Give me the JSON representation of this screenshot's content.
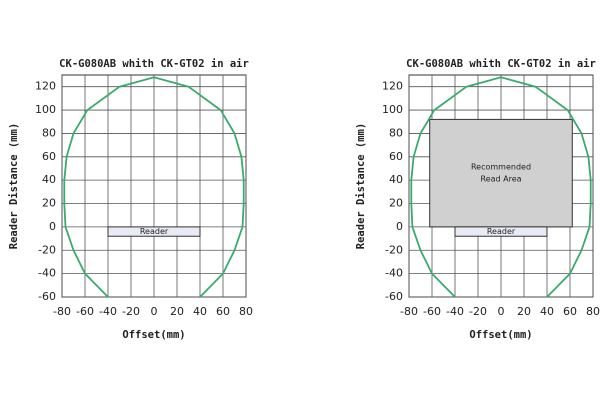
{
  "chart_data": [
    {
      "type": "line",
      "title": "CK-G080AB whith CK-GT02 in air",
      "xlabel": "Offset(mm)",
      "ylabel": "Reader Distance (mm)",
      "xlim": [
        -80,
        80
      ],
      "ylim": [
        -60,
        130
      ],
      "xticks": [
        -80,
        -60,
        -40,
        -20,
        0,
        20,
        40,
        60,
        80
      ],
      "yticks": [
        -60,
        -40,
        -20,
        0,
        20,
        40,
        60,
        80,
        100,
        120
      ],
      "grid": true,
      "series": [
        {
          "color": "#3aaa6e",
          "x": [
            -40,
            -60,
            -70,
            -77,
            -78,
            -78,
            -76,
            -70,
            -58,
            -30,
            0,
            30,
            58,
            70,
            76,
            78,
            78,
            77,
            70,
            60,
            40
          ],
          "values": [
            -60,
            -40,
            -20,
            0,
            20,
            40,
            60,
            80,
            100,
            120,
            128,
            120,
            100,
            80,
            60,
            40,
            20,
            0,
            -20,
            -40,
            -60
          ]
        }
      ],
      "annotations": [
        {
          "label": [
            "Reader"
          ],
          "x": [
            -40,
            40
          ],
          "y": [
            -8,
            0
          ],
          "color": "#e8eaf4"
        }
      ]
    },
    {
      "type": "line",
      "title": "CK-G080AB whith CK-GT02 in air",
      "xlabel": "Offset(mm)",
      "ylabel": "Reader Distance (mm)",
      "xlim": [
        -80,
        80
      ],
      "ylim": [
        -60,
        130
      ],
      "xticks": [
        -80,
        -60,
        -40,
        -20,
        0,
        20,
        40,
        60,
        80
      ],
      "yticks": [
        -60,
        -40,
        -20,
        0,
        20,
        40,
        60,
        80,
        100,
        120
      ],
      "grid": true,
      "series": [
        {
          "color": "#3aaa6e",
          "x": [
            -40,
            -60,
            -70,
            -77,
            -78,
            -78,
            -76,
            -70,
            -58,
            -30,
            0,
            30,
            58,
            70,
            76,
            78,
            78,
            77,
            70,
            60,
            40
          ],
          "values": [
            -60,
            -40,
            -20,
            0,
            20,
            40,
            60,
            80,
            100,
            120,
            128,
            120,
            100,
            80,
            60,
            40,
            20,
            0,
            -20,
            -40,
            -60
          ]
        }
      ],
      "annotations": [
        {
          "label": [
            "Recommended",
            "Read Area"
          ],
          "x": [
            -62,
            62
          ],
          "y": [
            0,
            92
          ],
          "color": "#d0d0d0"
        },
        {
          "label": [
            "Reader"
          ],
          "x": [
            -40,
            40
          ],
          "y": [
            -8,
            0
          ],
          "color": "#e8eaf4"
        }
      ]
    }
  ]
}
